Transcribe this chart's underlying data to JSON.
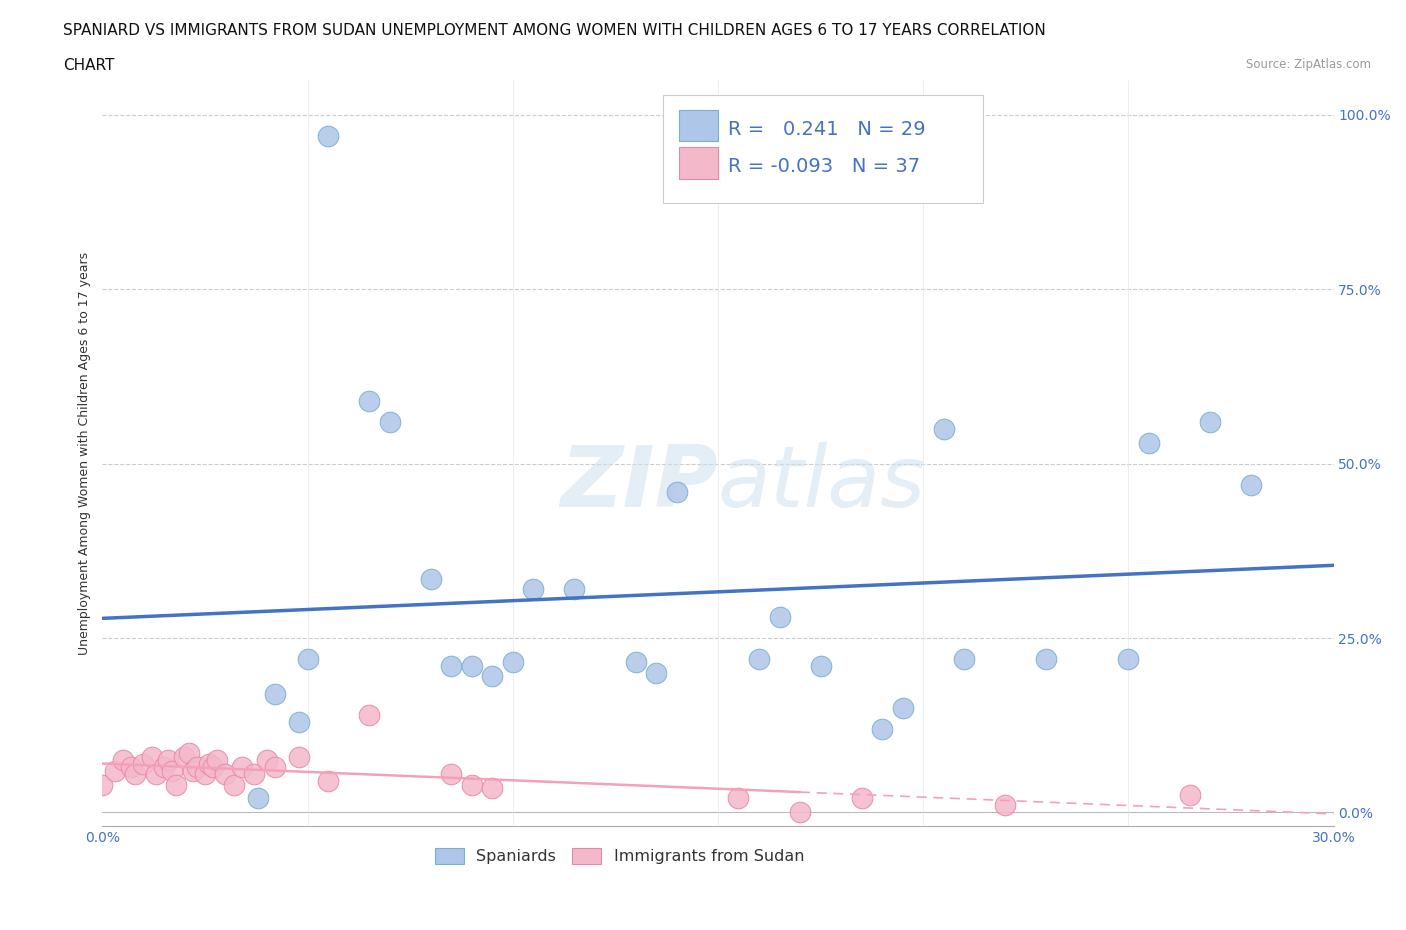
{
  "title_line1": "SPANIARD VS IMMIGRANTS FROM SUDAN UNEMPLOYMENT AMONG WOMEN WITH CHILDREN AGES 6 TO 17 YEARS CORRELATION",
  "title_line2": "CHART",
  "source": "Source: ZipAtlas.com",
  "ylabel": "Unemployment Among Women with Children Ages 6 to 17 years",
  "xlim": [
    0.0,
    0.3
  ],
  "ylim": [
    -0.02,
    1.05
  ],
  "yticks": [
    0.0,
    0.25,
    0.5,
    0.75,
    1.0
  ],
  "ytick_labels": [
    "0.0%",
    "25.0%",
    "50.0%",
    "75.0%",
    "100.0%"
  ],
  "xticks": [
    0.0,
    0.05,
    0.1,
    0.15,
    0.2,
    0.25,
    0.3
  ],
  "xtick_labels": [
    "0.0%",
    "",
    "",
    "",
    "",
    "",
    "30.0%"
  ],
  "spaniard_color": "#aec6e8",
  "spaniard_edge": "#7aafd4",
  "sudan_color": "#f4b8cb",
  "sudan_edge": "#e888a8",
  "line_spaniard_color": "#4472c4",
  "line_sudan_color": "#f4a0b8",
  "watermark_color": "#cce0f0",
  "R_spaniard": 0.241,
  "N_spaniard": 29,
  "R_sudan": -0.093,
  "N_sudan": 37,
  "spaniard_x": [
    0.038,
    0.042,
    0.048,
    0.05,
    0.055,
    0.065,
    0.07,
    0.08,
    0.085,
    0.09,
    0.095,
    0.1,
    0.105,
    0.115,
    0.13,
    0.135,
    0.14,
    0.16,
    0.165,
    0.175,
    0.195,
    0.205,
    0.21,
    0.255,
    0.27,
    0.28,
    0.19,
    0.23,
    0.25
  ],
  "spaniard_y": [
    0.02,
    0.17,
    0.13,
    0.22,
    0.97,
    0.59,
    0.56,
    0.335,
    0.21,
    0.21,
    0.195,
    0.215,
    0.32,
    0.32,
    0.215,
    0.2,
    0.46,
    0.22,
    0.28,
    0.21,
    0.15,
    0.55,
    0.22,
    0.53,
    0.56,
    0.47,
    0.12,
    0.22,
    0.22
  ],
  "sudan_x": [
    0.0,
    0.003,
    0.005,
    0.007,
    0.008,
    0.01,
    0.012,
    0.013,
    0.015,
    0.016,
    0.017,
    0.018,
    0.02,
    0.021,
    0.022,
    0.023,
    0.025,
    0.026,
    0.027,
    0.028,
    0.03,
    0.032,
    0.034,
    0.037,
    0.04,
    0.042,
    0.048,
    0.055,
    0.065,
    0.085,
    0.09,
    0.095,
    0.155,
    0.17,
    0.185,
    0.22,
    0.265
  ],
  "sudan_y": [
    0.04,
    0.06,
    0.075,
    0.065,
    0.055,
    0.07,
    0.08,
    0.055,
    0.065,
    0.075,
    0.06,
    0.04,
    0.08,
    0.085,
    0.06,
    0.065,
    0.055,
    0.07,
    0.065,
    0.075,
    0.055,
    0.04,
    0.065,
    0.055,
    0.075,
    0.065,
    0.08,
    0.045,
    0.14,
    0.055,
    0.04,
    0.035,
    0.02,
    0.0,
    0.02,
    0.01,
    0.025
  ],
  "title_fontsize": 11,
  "axis_label_fontsize": 9,
  "tick_fontsize": 10,
  "legend_fontsize": 14,
  "marker_size": 220
}
